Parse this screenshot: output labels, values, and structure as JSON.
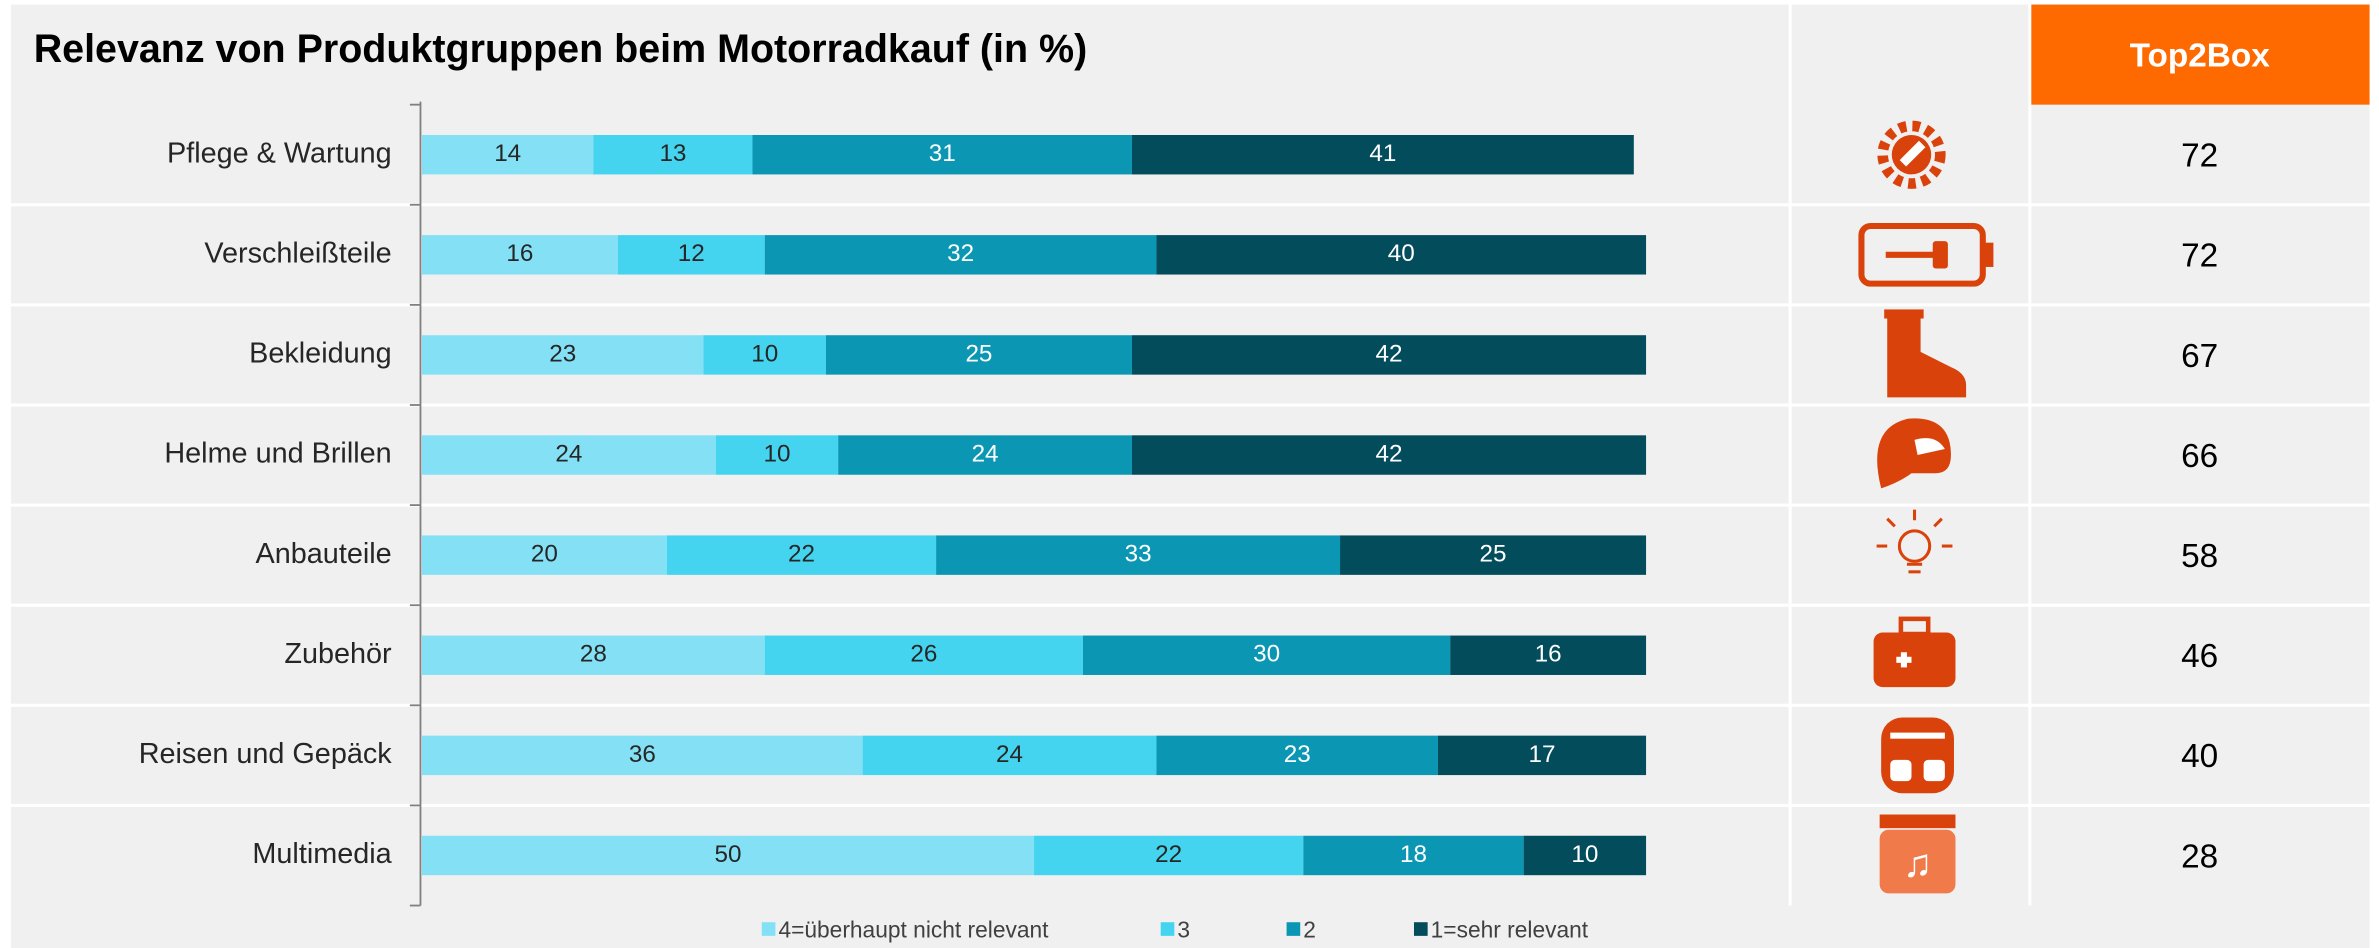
{
  "chart_data": {
    "type": "bar",
    "orientation": "horizontal",
    "stacked": true,
    "title": "Relevanz von Produktgruppen beim Motorradkauf (in %)",
    "categories": [
      "Pflege & Wartung",
      "Verschleißteile",
      "Bekleidung",
      "Helme und Brillen",
      "Anbauteile",
      "Zubehör",
      "Reisen und Gepäck",
      "Multimedia"
    ],
    "series": [
      {
        "name": "4=überhaupt nicht relevant",
        "color": "#84e1f5",
        "values": [
          14,
          16,
          23,
          24,
          20,
          28,
          36,
          50
        ]
      },
      {
        "name": "3",
        "color": "#45d4f0",
        "values": [
          13,
          12,
          10,
          10,
          22,
          26,
          24,
          22
        ]
      },
      {
        "name": "2",
        "color": "#0b97b3",
        "values": [
          31,
          32,
          25,
          24,
          33,
          30,
          23,
          18
        ]
      },
      {
        "name": "1=sehr relevant",
        "color": "#024c5c",
        "values": [
          41,
          40,
          42,
          42,
          25,
          16,
          17,
          10
        ]
      }
    ],
    "xlim": [
      0,
      100
    ],
    "top2box": {
      "header": "Top2Box",
      "color": "#ff6a00",
      "values": [
        72,
        72,
        67,
        66,
        58,
        46,
        40,
        28
      ]
    }
  }
}
